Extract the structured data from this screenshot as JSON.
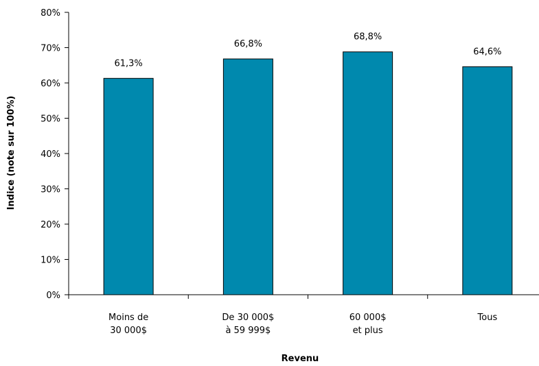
{
  "chart_data": {
    "type": "bar",
    "title": "",
    "xlabel": "Revenu",
    "ylabel": "Indice (note sur 100%)",
    "categories": [
      [
        "Moins de",
        "30 000$"
      ],
      [
        "De 30 000$",
        "à 59 999$"
      ],
      [
        "60 000$",
        "et plus"
      ],
      [
        "Tous"
      ]
    ],
    "values": [
      61.3,
      66.8,
      68.8,
      64.6
    ],
    "data_labels": [
      "61,3%",
      "66,8%",
      "68,8%",
      "64,6%"
    ],
    "ylim": [
      0,
      80
    ],
    "yticks": [
      0,
      10,
      20,
      30,
      40,
      50,
      60,
      70,
      80
    ],
    "ytick_labels": [
      "0%",
      "10%",
      "20%",
      "30%",
      "40%",
      "50%",
      "60%",
      "70%",
      "80%"
    ],
    "bar_color": "#0089AE",
    "grid": false,
    "legend": "none"
  }
}
